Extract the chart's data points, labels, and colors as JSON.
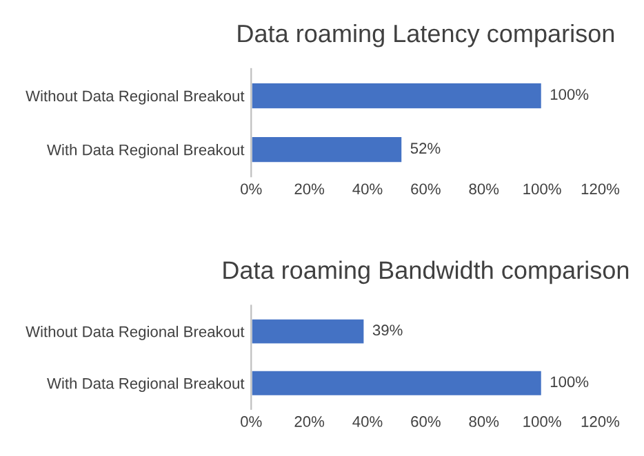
{
  "chart_data": [
    {
      "type": "bar",
      "orientation": "horizontal",
      "title": "Data roaming Latency comparison",
      "categories": [
        "Without Data Regional Breakout",
        "With Data Regional Breakout"
      ],
      "values": [
        100,
        52
      ],
      "value_labels": [
        "100%",
        "52%"
      ],
      "color": "#4472c4",
      "xlim": [
        0,
        120
      ],
      "xticks": [
        {
          "value": 0,
          "label": "0%"
        },
        {
          "value": 20,
          "label": "20%"
        },
        {
          "value": 40,
          "label": "40%"
        },
        {
          "value": 60,
          "label": "60%"
        },
        {
          "value": 80,
          "label": "80%"
        },
        {
          "value": 100,
          "label": "100%"
        },
        {
          "value": 120,
          "label": "120%"
        }
      ],
      "grid": false,
      "legend": false
    },
    {
      "type": "bar",
      "orientation": "horizontal",
      "title": "Data roaming Bandwidth comparison",
      "categories": [
        "Without Data Regional Breakout",
        "With Data Regional Breakout"
      ],
      "values": [
        39,
        100
      ],
      "value_labels": [
        "39%",
        "100%"
      ],
      "color": "#4472c4",
      "xlim": [
        0,
        120
      ],
      "xticks": [
        {
          "value": 0,
          "label": "0%"
        },
        {
          "value": 20,
          "label": "20%"
        },
        {
          "value": 40,
          "label": "40%"
        },
        {
          "value": 60,
          "label": "60%"
        },
        {
          "value": 80,
          "label": "80%"
        },
        {
          "value": 100,
          "label": "100%"
        },
        {
          "value": 120,
          "label": "120%"
        }
      ],
      "grid": false,
      "legend": false
    }
  ]
}
